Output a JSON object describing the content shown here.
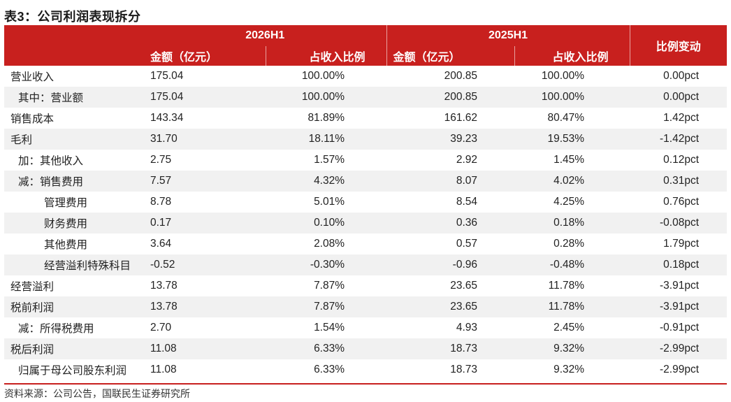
{
  "title": "表3：公司利润表现拆分",
  "header": {
    "period1": "2026H1",
    "period2": "2025H1",
    "change": "比例变动",
    "amount": "金额（亿元）",
    "ratio": "占收入比例"
  },
  "rows": [
    {
      "label": "营业收入",
      "indent": 0,
      "a1": "175.04",
      "p1": "100.00%",
      "a2": "200.85",
      "p2": "100.00%",
      "chg": "0.00pct"
    },
    {
      "label": "其中：营业额",
      "indent": 1,
      "a1": "175.04",
      "p1": "100.00%",
      "a2": "200.85",
      "p2": "100.00%",
      "chg": "0.00pct"
    },
    {
      "label": "销售成本",
      "indent": 0,
      "a1": "143.34",
      "p1": "81.89%",
      "a2": "161.62",
      "p2": "80.47%",
      "chg": "1.42pct"
    },
    {
      "label": "毛利",
      "indent": 0,
      "a1": "31.70",
      "p1": "18.11%",
      "a2": "39.23",
      "p2": "19.53%",
      "chg": "-1.42pct"
    },
    {
      "label": "加：其他收入",
      "indent": 1,
      "a1": "2.75",
      "p1": "1.57%",
      "a2": "2.92",
      "p2": "1.45%",
      "chg": "0.12pct"
    },
    {
      "label": "减：销售费用",
      "indent": 1,
      "a1": "7.57",
      "p1": "4.32%",
      "a2": "8.07",
      "p2": "4.02%",
      "chg": "0.31pct"
    },
    {
      "label": "管理费用",
      "indent": 2,
      "a1": "8.78",
      "p1": "5.01%",
      "a2": "8.54",
      "p2": "4.25%",
      "chg": "0.76pct"
    },
    {
      "label": "财务费用",
      "indent": 2,
      "a1": "0.17",
      "p1": "0.10%",
      "a2": "0.36",
      "p2": "0.18%",
      "chg": "-0.08pct"
    },
    {
      "label": "其他费用",
      "indent": 2,
      "a1": "3.64",
      "p1": "2.08%",
      "a2": "0.57",
      "p2": "0.28%",
      "chg": "1.79pct"
    },
    {
      "label": "经营溢利特殊科目",
      "indent": 2,
      "a1": "-0.52",
      "p1": "-0.30%",
      "a2": "-0.96",
      "p2": "-0.48%",
      "chg": "0.18pct"
    },
    {
      "label": "经营溢利",
      "indent": 0,
      "a1": "13.78",
      "p1": "7.87%",
      "a2": "23.65",
      "p2": "11.78%",
      "chg": "-3.91pct"
    },
    {
      "label": "税前利润",
      "indent": 0,
      "a1": "13.78",
      "p1": "7.87%",
      "a2": "23.65",
      "p2": "11.78%",
      "chg": "-3.91pct"
    },
    {
      "label": "减：所得税费用",
      "indent": 1,
      "a1": "2.70",
      "p1": "1.54%",
      "a2": "4.93",
      "p2": "2.45%",
      "chg": "-0.91pct"
    },
    {
      "label": "税后利润",
      "indent": 0,
      "a1": "11.08",
      "p1": "6.33%",
      "a2": "18.73",
      "p2": "9.32%",
      "chg": "-2.99pct"
    },
    {
      "label": "归属于母公司股东利润",
      "indent": 1,
      "a1": "11.08",
      "p1": "6.33%",
      "a2": "18.73",
      "p2": "9.32%",
      "chg": "-2.99pct"
    }
  ],
  "source": "资料来源：公司公告，国联民生证券研究所",
  "colors": {
    "header_bg": "#c8201e",
    "stripe": "#f1f1f1"
  }
}
